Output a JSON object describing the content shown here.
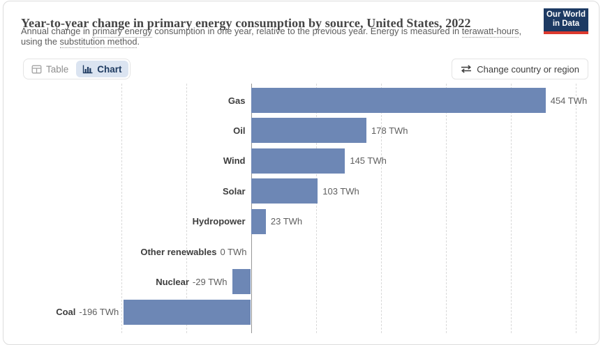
{
  "header": {
    "title": "Year-to-year change in primary energy consumption by source, United States, 2022",
    "subtitle_parts": [
      {
        "text": "Annual change in "
      },
      {
        "text": "primary energy",
        "underline": true
      },
      {
        "text": " consumption in one year, relative to the previous year. Energy is measured in "
      },
      {
        "text": "terawatt-hours",
        "underline": true
      },
      {
        "text": ","
      },
      {
        "br": true
      },
      {
        "text": "using the "
      },
      {
        "text": "substitution method",
        "underline": true
      },
      {
        "text": "."
      }
    ],
    "logo": {
      "line1": "Our World",
      "line2": "in Data",
      "bg": "#1d3a63",
      "accent": "#dc392e"
    }
  },
  "toolbar": {
    "table_label": "Table",
    "chart_label": "Chart",
    "active_view": "Chart",
    "change_country_label": "Change country or region"
  },
  "chart_data": {
    "type": "bar",
    "orientation": "horizontal",
    "title": "Year-to-year change in primary energy consumption by source, United States, 2022",
    "unit": "TWh",
    "categories": [
      "Gas",
      "Oil",
      "Wind",
      "Solar",
      "Hydropower",
      "Other renewables",
      "Nuclear",
      "Coal"
    ],
    "values": [
      454,
      178,
      145,
      103,
      23,
      0,
      -29,
      -196
    ],
    "value_labels": [
      "454 TWh",
      "178 TWh",
      "145 TWh",
      "103 TWh",
      "23 TWh",
      "0 TWh",
      "-29 TWh",
      "-196 TWh"
    ],
    "xlim": [
      -260,
      540
    ],
    "gridline_values": [
      -200,
      -100,
      100,
      200,
      300,
      400,
      500
    ],
    "grid": true,
    "legend": "none",
    "bar_color": "#6d87b5",
    "colors": {
      "category_label": "#3d3d3d",
      "value_label": "#5f5f5f",
      "gridline": "#d9d9d9",
      "zero_line": "#969696"
    }
  }
}
